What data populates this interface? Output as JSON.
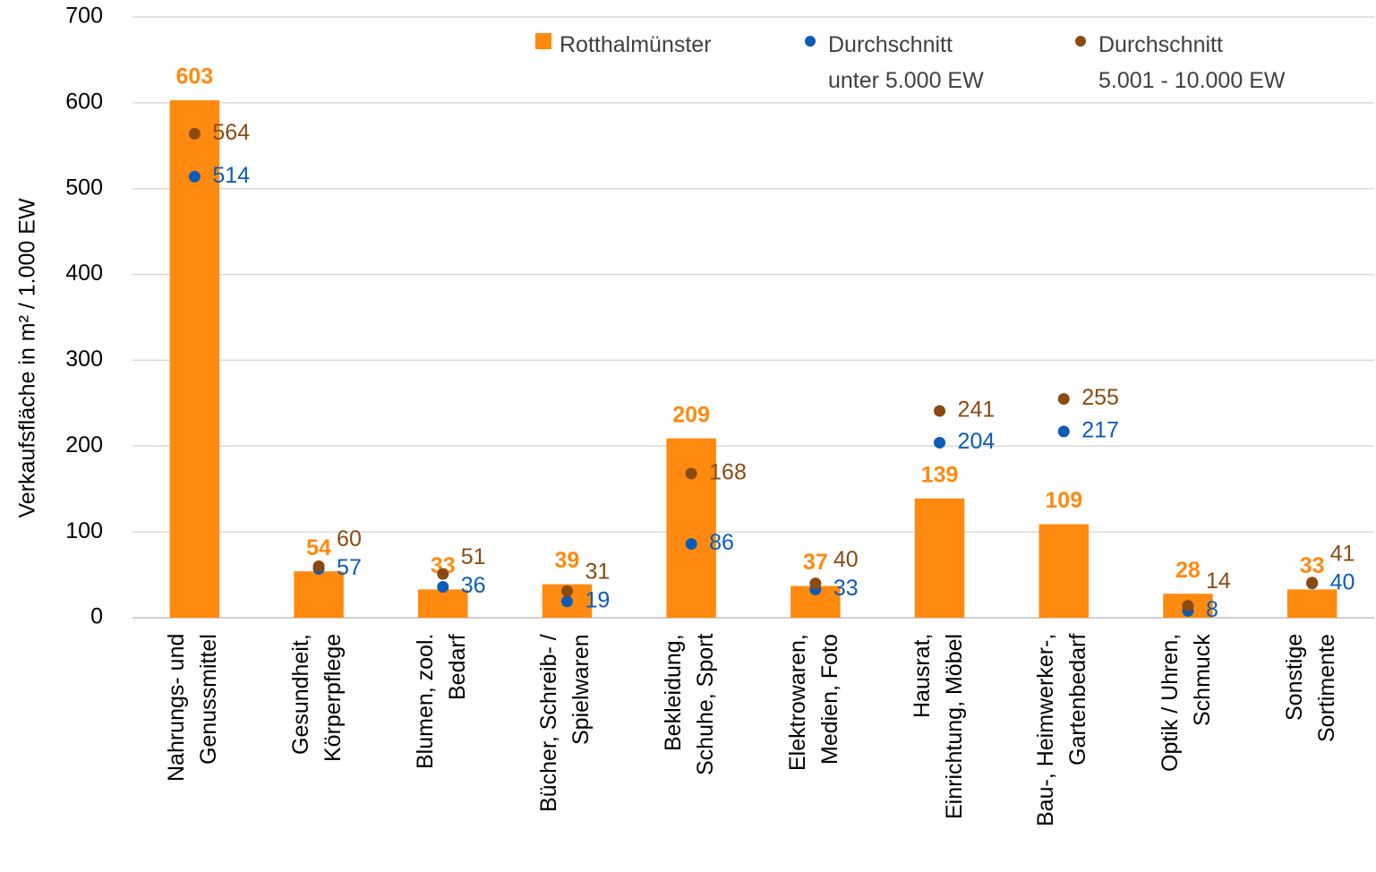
{
  "chart_data": {
    "type": "bar",
    "y_label": "Verkaufsfläche in m² / 1.000 EW",
    "categories": [
      "Nahrungs- und\nGenussmittel",
      "Gesundheit,\nKörperpflege",
      "Blumen, zool.\nBedarf",
      "Bücher, Schreib- /\nSpielwaren",
      "Bekleidung,\nSchuhe, Sport",
      "Elektrowaren,\nMedien, Foto",
      "Hausrat,\nEinrichtung, Möbel",
      "Bau-, Heimwerker-,\nGartenbedarf",
      "Optik / Uhren,\nSchmuck",
      "Sonstige\nSortimente"
    ],
    "series": [
      {
        "name": "Rotthalmünster",
        "type": "bar",
        "color": "#ff8a0f",
        "values": [
          603,
          54,
          33,
          39,
          209,
          37,
          139,
          109,
          28,
          33
        ]
      },
      {
        "name": "Durchschnitt\nunter 5.000 EW",
        "type": "scatter",
        "color": "#0b5cb5",
        "values": [
          514,
          57,
          36,
          19,
          86,
          33,
          204,
          217,
          8,
          40
        ]
      },
      {
        "name": "Durchschnitt\n5.001 - 10.000 EW",
        "type": "scatter",
        "color": "#8a4a10",
        "values": [
          564,
          60,
          51,
          31,
          168,
          40,
          241,
          255,
          14,
          41
        ]
      }
    ],
    "ylim": [
      0,
      700
    ],
    "yticks": [
      0,
      100,
      200,
      300,
      400,
      500,
      600,
      700
    ],
    "grid": true,
    "legend": "top"
  }
}
